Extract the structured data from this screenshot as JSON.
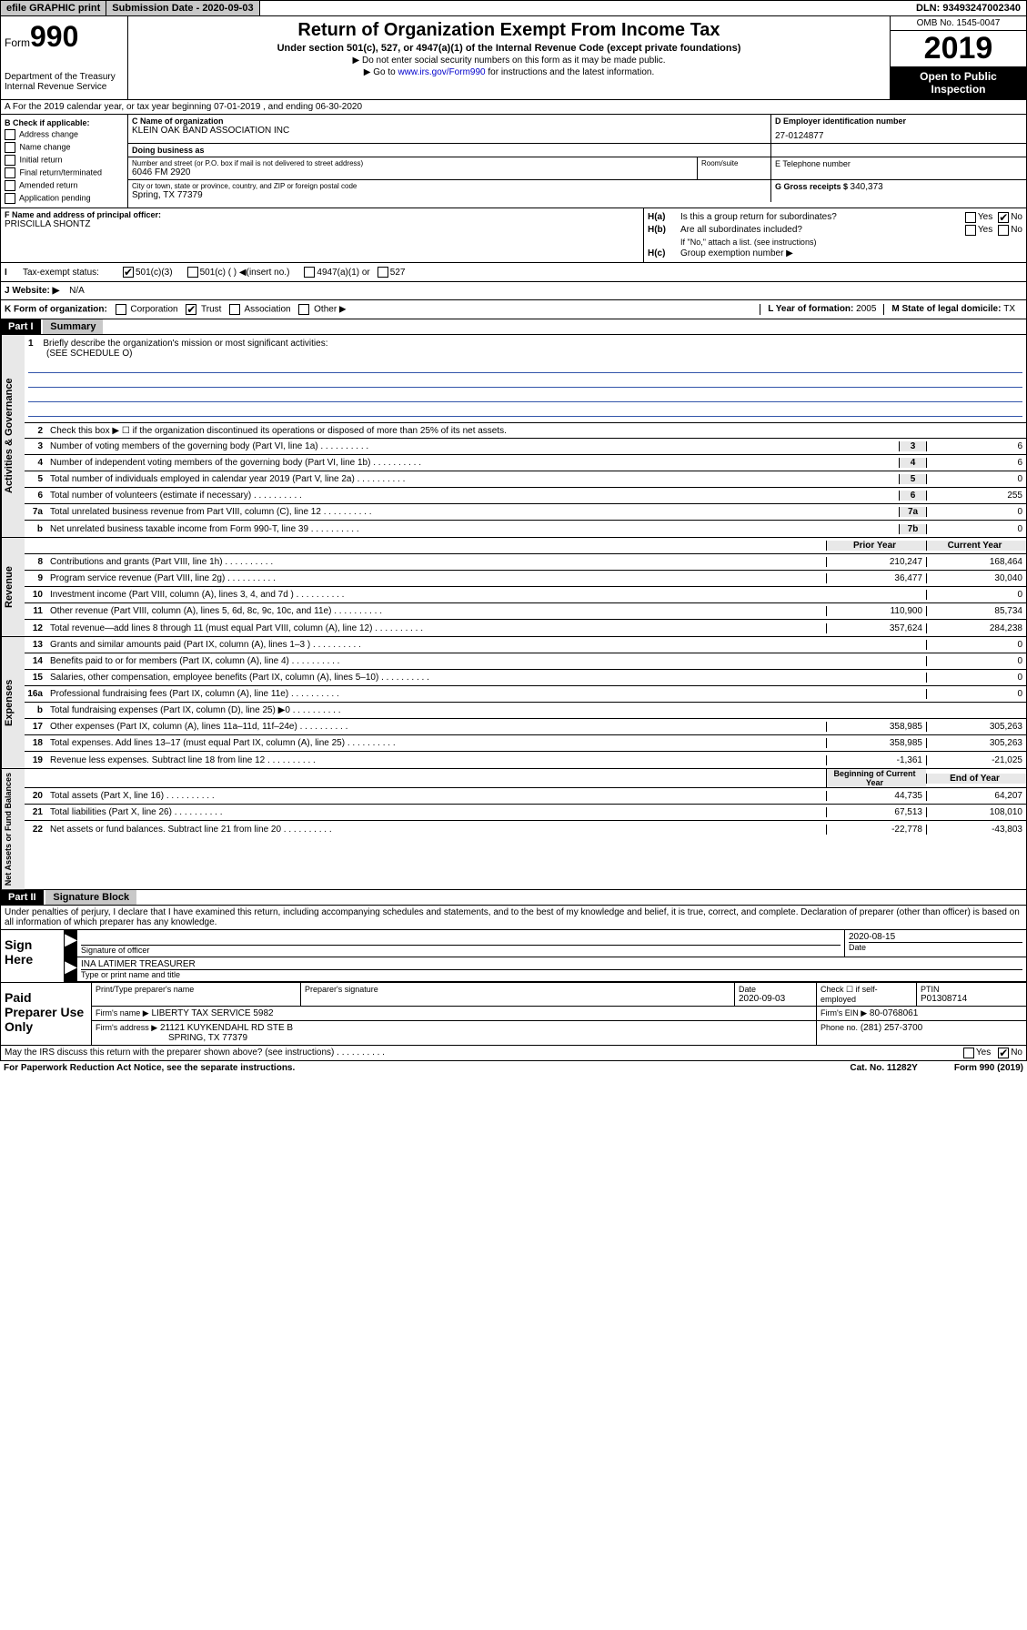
{
  "topbar": {
    "efile": "efile GRAPHIC print",
    "submission": "Submission Date - 2020-09-03",
    "dln": "DLN: 93493247002340"
  },
  "header": {
    "form_prefix": "Form",
    "form_number": "990",
    "title": "Return of Organization Exempt From Income Tax",
    "subtitle": "Under section 501(c), 527, or 4947(a)(1) of the Internal Revenue Code (except private foundations)",
    "note1": "▶ Do not enter social security numbers on this form as it may be made public.",
    "note2_prefix": "▶ Go to ",
    "note2_link": "www.irs.gov/Form990",
    "note2_suffix": " for instructions and the latest information.",
    "dept": "Department of the Treasury\nInternal Revenue Service",
    "omb": "OMB No. 1545-0047",
    "year": "2019",
    "open_public": "Open to Public Inspection"
  },
  "row_a": "A For the 2019 calendar year, or tax year beginning 07-01-2019  , and ending 06-30-2020",
  "section_b": {
    "check_label": "B Check if applicable:",
    "checks": [
      "Address change",
      "Name change",
      "Initial return",
      "Final return/terminated",
      "Amended return",
      "Application pending"
    ],
    "name_label": "C Name of organization",
    "org_name": "KLEIN OAK BAND ASSOCIATION INC",
    "dba_label": "Doing business as",
    "dba": "",
    "street_label": "Number and street (or P.O. box if mail is not delivered to street address)",
    "street": "6046 FM 2920",
    "room_label": "Room/suite",
    "city_label": "City or town, state or province, country, and ZIP or foreign postal code",
    "city": "Spring, TX  77379",
    "ein_label": "D Employer identification number",
    "ein": "27-0124877",
    "phone_label": "E Telephone number",
    "phone": "",
    "gross_label": "G Gross receipts $ ",
    "gross": "340,373"
  },
  "row_f": {
    "f_label": "F  Name and address of principal officer:",
    "f_value": "PRISCILLA SHONTZ",
    "ha_label": "H(a)",
    "ha_text": "Is this a group return for subordinates?",
    "hb_label": "H(b)",
    "hb_text": "Are all subordinates included?",
    "hb_note": "If \"No,\" attach a list. (see instructions)",
    "hc_label": "H(c)",
    "hc_text": "Group exemption number ▶",
    "yes": "Yes",
    "no": "No"
  },
  "row_i": {
    "label": "Tax-exempt status:",
    "opt1": "501(c)(3)",
    "opt2": "501(c) (  ) ◀(insert no.)",
    "opt3": "4947(a)(1) or",
    "opt4": "527"
  },
  "row_j": {
    "label": "J  Website: ▶",
    "value": "N/A"
  },
  "row_k": {
    "k_label": "K Form of organization:",
    "opts": [
      "Corporation",
      "Trust",
      "Association",
      "Other ▶"
    ],
    "l_label": "L Year of formation: ",
    "l_value": "2005",
    "m_label": "M State of legal domicile: ",
    "m_value": "TX"
  },
  "part1": {
    "header": "Part I",
    "title": "Summary",
    "sidebar1": "Activities & Governance",
    "sidebar2": "Revenue",
    "sidebar3": "Expenses",
    "sidebar4": "Net Assets or Fund Balances",
    "line1_label": "Briefly describe the organization's mission or most significant activities:",
    "line1_value": "(SEE SCHEDULE O)",
    "line2": "Check this box ▶ ☐  if the organization discontinued its operations or disposed of more than 25% of its net assets.",
    "lines_gov": [
      {
        "num": "3",
        "text": "Number of voting members of the governing body (Part VI, line 1a)",
        "box": "3",
        "val": "6"
      },
      {
        "num": "4",
        "text": "Number of independent voting members of the governing body (Part VI, line 1b)",
        "box": "4",
        "val": "6"
      },
      {
        "num": "5",
        "text": "Total number of individuals employed in calendar year 2019 (Part V, line 2a)",
        "box": "5",
        "val": "0"
      },
      {
        "num": "6",
        "text": "Total number of volunteers (estimate if necessary)",
        "box": "6",
        "val": "255"
      },
      {
        "num": "7a",
        "text": "Total unrelated business revenue from Part VIII, column (C), line 12",
        "box": "7a",
        "val": "0"
      },
      {
        "num": "b",
        "text": "Net unrelated business taxable income from Form 990-T, line 39",
        "box": "7b",
        "val": "0"
      }
    ],
    "col_prior": "Prior Year",
    "col_current": "Current Year",
    "lines_rev": [
      {
        "num": "8",
        "text": "Contributions and grants (Part VIII, line 1h)",
        "prior": "210,247",
        "cur": "168,464"
      },
      {
        "num": "9",
        "text": "Program service revenue (Part VIII, line 2g)",
        "prior": "36,477",
        "cur": "30,040"
      },
      {
        "num": "10",
        "text": "Investment income (Part VIII, column (A), lines 3, 4, and 7d )",
        "prior": "",
        "cur": "0"
      },
      {
        "num": "11",
        "text": "Other revenue (Part VIII, column (A), lines 5, 6d, 8c, 9c, 10c, and 11e)",
        "prior": "110,900",
        "cur": "85,734"
      },
      {
        "num": "12",
        "text": "Total revenue—add lines 8 through 11 (must equal Part VIII, column (A), line 12)",
        "prior": "357,624",
        "cur": "284,238"
      }
    ],
    "lines_exp": [
      {
        "num": "13",
        "text": "Grants and similar amounts paid (Part IX, column (A), lines 1–3 )",
        "prior": "",
        "cur": "0"
      },
      {
        "num": "14",
        "text": "Benefits paid to or for members (Part IX, column (A), line 4)",
        "prior": "",
        "cur": "0"
      },
      {
        "num": "15",
        "text": "Salaries, other compensation, employee benefits (Part IX, column (A), lines 5–10)",
        "prior": "",
        "cur": "0"
      },
      {
        "num": "16a",
        "text": "Professional fundraising fees (Part IX, column (A), line 11e)",
        "prior": "",
        "cur": "0"
      },
      {
        "num": "b",
        "text": "Total fundraising expenses (Part IX, column (D), line 25) ▶0",
        "prior": "",
        "cur": "",
        "shaded": true
      },
      {
        "num": "17",
        "text": "Other expenses (Part IX, column (A), lines 11a–11d, 11f–24e)",
        "prior": "358,985",
        "cur": "305,263"
      },
      {
        "num": "18",
        "text": "Total expenses. Add lines 13–17 (must equal Part IX, column (A), line 25)",
        "prior": "358,985",
        "cur": "305,263"
      },
      {
        "num": "19",
        "text": "Revenue less expenses. Subtract line 18 from line 12",
        "prior": "-1,361",
        "cur": "-21,025"
      }
    ],
    "col_begin": "Beginning of Current Year",
    "col_end": "End of Year",
    "lines_net": [
      {
        "num": "20",
        "text": "Total assets (Part X, line 16)",
        "prior": "44,735",
        "cur": "64,207"
      },
      {
        "num": "21",
        "text": "Total liabilities (Part X, line 26)",
        "prior": "67,513",
        "cur": "108,010"
      },
      {
        "num": "22",
        "text": "Net assets or fund balances. Subtract line 21 from line 20",
        "prior": "-22,778",
        "cur": "-43,803"
      }
    ]
  },
  "part2": {
    "header": "Part II",
    "title": "Signature Block",
    "perjury": "Under penalties of perjury, I declare that I have examined this return, including accompanying schedules and statements, and to the best of my knowledge and belief, it is true, correct, and complete. Declaration of preparer (other than officer) is based on all information of which preparer has any knowledge.",
    "sign_label": "Sign Here",
    "sig_date": "2020-08-15",
    "sig_of_officer": "Signature of officer",
    "date_label": "Date",
    "name_title": "INA LATIMER  TREASURER",
    "name_title_label": "Type or print name and title",
    "paid_label": "Paid Preparer Use Only",
    "prep_name_label": "Print/Type preparer's name",
    "prep_sig_label": "Preparer's signature",
    "prep_date_label": "Date",
    "prep_date": "2020-09-03",
    "check_if": "Check ☐ if self-employed",
    "ptin_label": "PTIN",
    "ptin": "P01308714",
    "firm_name_label": "Firm's name   ▶",
    "firm_name": "LIBERTY TAX SERVICE 5982",
    "firm_ein_label": "Firm's EIN ▶",
    "firm_ein": "80-0768061",
    "firm_addr_label": "Firm's address ▶",
    "firm_addr": "21121 KUYKENDAHL RD STE B",
    "firm_city": "SPRING, TX  77379",
    "phone_label": "Phone no.",
    "phone": "(281) 257-3700"
  },
  "footer": {
    "discuss": "May the IRS discuss this return with the preparer shown above? (see instructions)",
    "yes": "Yes",
    "no": "No",
    "paperwork": "For Paperwork Reduction Act Notice, see the separate instructions.",
    "cat": "Cat. No. 11282Y",
    "form": "Form 990 (2019)"
  }
}
